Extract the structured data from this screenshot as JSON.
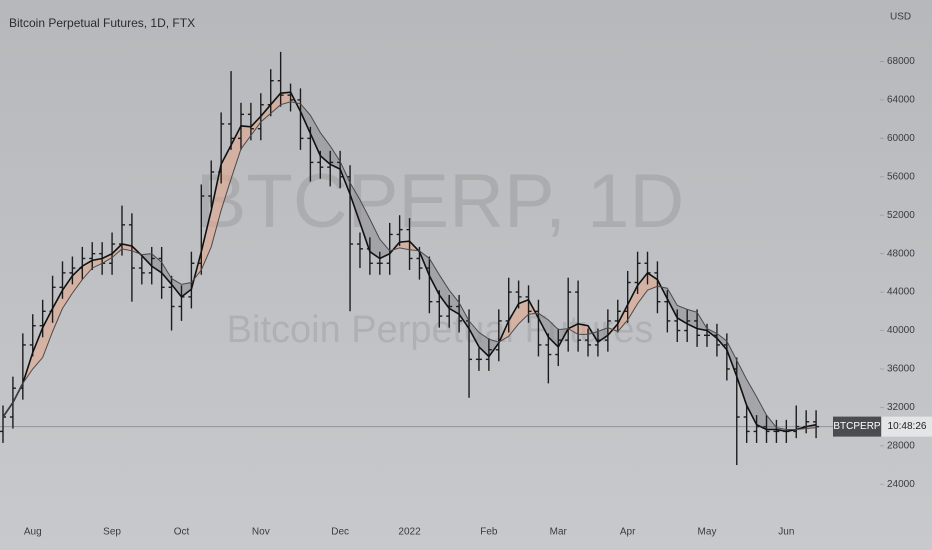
{
  "chart_data": {
    "type": "ohlc",
    "title": "Bitcoin Perpetual Futures, 1D, FTX",
    "currency": "USD",
    "watermark": "BTCPERP, 1D",
    "watermark_subtitle": "Bitcoin Perpetual Futures",
    "symbol_label": "BTCPERP",
    "countdown": "10:48:26",
    "color": "#1c1c1c",
    "band_colors": {
      "up": "#e3a98e",
      "down": "#8f9094"
    },
    "ylim": [
      20800,
      74400
    ],
    "yticks": [
      24000,
      28000,
      32000,
      36000,
      40000,
      44000,
      48000,
      52000,
      56000,
      60000,
      64000,
      68000
    ],
    "grid": false,
    "categories": [
      null,
      null,
      null,
      "Aug",
      null,
      null,
      null,
      null,
      null,
      null,
      null,
      "Sep",
      null,
      null,
      null,
      null,
      null,
      null,
      "Oct",
      null,
      null,
      null,
      null,
      null,
      null,
      null,
      "Nov",
      null,
      null,
      null,
      null,
      null,
      null,
      null,
      "Dec",
      null,
      null,
      null,
      null,
      null,
      null,
      "2022",
      null,
      null,
      null,
      null,
      null,
      null,
      null,
      "Feb",
      null,
      null,
      null,
      null,
      null,
      null,
      "Mar",
      null,
      null,
      null,
      null,
      null,
      null,
      "Apr",
      null,
      null,
      null,
      null,
      null,
      null,
      null,
      "May",
      null,
      null,
      null,
      null,
      null,
      null,
      null,
      "Jun",
      null,
      null,
      null
    ],
    "open": [
      29500,
      31000,
      34000,
      38500,
      40500,
      42000,
      44500,
      46000,
      46500,
      47500,
      48000,
      47000,
      49000,
      51000,
      46500,
      46000,
      47500,
      44500,
      42500,
      43500,
      47000,
      54000,
      56500,
      61500,
      60000,
      62500,
      61000,
      63500,
      66000,
      64500,
      64000,
      60000,
      57500,
      57000,
      57500,
      56000,
      49000,
      48500,
      47000,
      47000,
      50000,
      50500,
      47500,
      46500,
      43000,
      41500,
      42500,
      41000,
      37000,
      37000,
      38000,
      41000,
      44000,
      43500,
      42000,
      38500,
      37500,
      39000,
      44000,
      39000,
      38500,
      39000,
      41000,
      42000,
      45000,
      47000,
      46000,
      43000,
      41000,
      40000,
      41000,
      39500,
      39500,
      38500,
      36000,
      31000,
      29500,
      30000,
      29500,
      29500,
      29500,
      30000,
      30500
    ],
    "high": [
      32200,
      35200,
      39700,
      41700,
      43200,
      45700,
      47200,
      47700,
      48700,
      49200,
      49200,
      50200,
      53000,
      52200,
      47700,
      48700,
      48700,
      45700,
      44700,
      48200,
      55200,
      57700,
      62700,
      67000,
      63700,
      63700,
      64700,
      67200,
      69000,
      65700,
      65200,
      61200,
      58700,
      58700,
      58700,
      57200,
      50200,
      49700,
      48200,
      51200,
      52000,
      51700,
      48700,
      47700,
      44200,
      43700,
      43700,
      42200,
      38200,
      39200,
      42200,
      45500,
      45200,
      44700,
      43200,
      39700,
      40200,
      45500,
      45200,
      40200,
      40200,
      42200,
      43200,
      46200,
      48200,
      48200,
      47200,
      44200,
      42200,
      42200,
      42200,
      40700,
      40700,
      39700,
      37200,
      32200,
      31200,
      31200,
      30700,
      30700,
      32200,
      31700,
      31700
    ],
    "low": [
      28300,
      29800,
      32800,
      37300,
      39300,
      40800,
      43300,
      44800,
      45300,
      46300,
      45800,
      45800,
      47800,
      43000,
      44800,
      44800,
      43300,
      40000,
      41000,
      42300,
      45800,
      52800,
      55300,
      58800,
      58800,
      59800,
      59800,
      62300,
      63300,
      62800,
      58800,
      55500,
      55800,
      55000,
      54800,
      42000,
      46500,
      45800,
      45800,
      45800,
      48800,
      46300,
      45300,
      41800,
      40300,
      40300,
      39800,
      33000,
      35800,
      35800,
      36800,
      39800,
      42300,
      40800,
      37300,
      34500,
      36300,
      37800,
      37800,
      37300,
      37300,
      37800,
      39800,
      40800,
      43800,
      44800,
      41800,
      39800,
      38800,
      38800,
      38300,
      38300,
      37300,
      34800,
      26000,
      28300,
      28300,
      28300,
      28300,
      28300,
      28800,
      29300,
      28800
    ],
    "close": [
      31000,
      34000,
      38500,
      40500,
      42000,
      44500,
      46000,
      46500,
      47500,
      48000,
      47000,
      49000,
      51000,
      46500,
      46000,
      47500,
      44500,
      42500,
      43500,
      47000,
      54000,
      56500,
      61500,
      60000,
      62500,
      61000,
      63500,
      66000,
      64500,
      64000,
      60000,
      57500,
      57000,
      57500,
      56000,
      49000,
      48500,
      47000,
      47000,
      50000,
      50500,
      47500,
      46500,
      43000,
      41500,
      42500,
      41000,
      37000,
      37000,
      38000,
      41000,
      44000,
      43500,
      42000,
      38500,
      37500,
      39000,
      44000,
      39000,
      38500,
      39000,
      41000,
      42000,
      45000,
      47000,
      46000,
      43000,
      41000,
      40000,
      41000,
      39500,
      39500,
      38500,
      36000,
      31000,
      29500,
      30000,
      29500,
      29500,
      29500,
      30000,
      30500,
      30000
    ],
    "lines": [
      {
        "color": "#111111",
        "values": [
          31000,
          32500,
          34500,
          37700,
          40300,
          42300,
          44200,
          45700,
          46700,
          47300,
          47500,
          48000,
          49000,
          48800,
          47800,
          46700,
          46000,
          44800,
          43500,
          44300,
          48200,
          52500,
          57300,
          59300,
          61300,
          61200,
          62300,
          63500,
          64700,
          64800,
          62800,
          60500,
          58200,
          57300,
          56800,
          54200,
          51200,
          48200,
          47500,
          48000,
          49200,
          49300,
          48200,
          45700,
          43700,
          42300,
          41700,
          40200,
          38300,
          37300,
          38700,
          41000,
          42800,
          43200,
          41300,
          39300,
          38300,
          40200,
          40700,
          40500,
          38800,
          39500,
          40700,
          42700,
          44700,
          46000,
          45300,
          43300,
          41300,
          40700,
          40200,
          40000,
          39200,
          38000,
          35200,
          32200,
          30200,
          29700,
          29700,
          29500,
          29700,
          30000,
          30200
        ]
      },
      {
        "color": "#4a4a4e",
        "values": [
          31000,
          32500,
          34500,
          36000,
          37200,
          39900,
          42300,
          43900,
          45300,
          46500,
          47000,
          47600,
          48500,
          48300,
          47900,
          48000,
          47100,
          45400,
          44800,
          45000,
          46300,
          48700,
          52500,
          55800,
          58900,
          60300,
          61700,
          62600,
          63500,
          63800,
          63600,
          62400,
          60600,
          59200,
          57600,
          55400,
          53600,
          51600,
          49500,
          48300,
          48600,
          48400,
          48300,
          47500,
          45800,
          44200,
          42900,
          41000,
          39800,
          39100,
          38800,
          39400,
          40700,
          41700,
          41800,
          41100,
          40100,
          40200,
          39600,
          39600,
          39900,
          40300,
          39900,
          41100,
          42800,
          44200,
          44600,
          44400,
          42600,
          42200,
          41900,
          40200,
          39700,
          38900,
          36900,
          34900,
          33100,
          31200,
          29900,
          29700,
          29700,
          29800,
          29900
        ]
      }
    ]
  }
}
